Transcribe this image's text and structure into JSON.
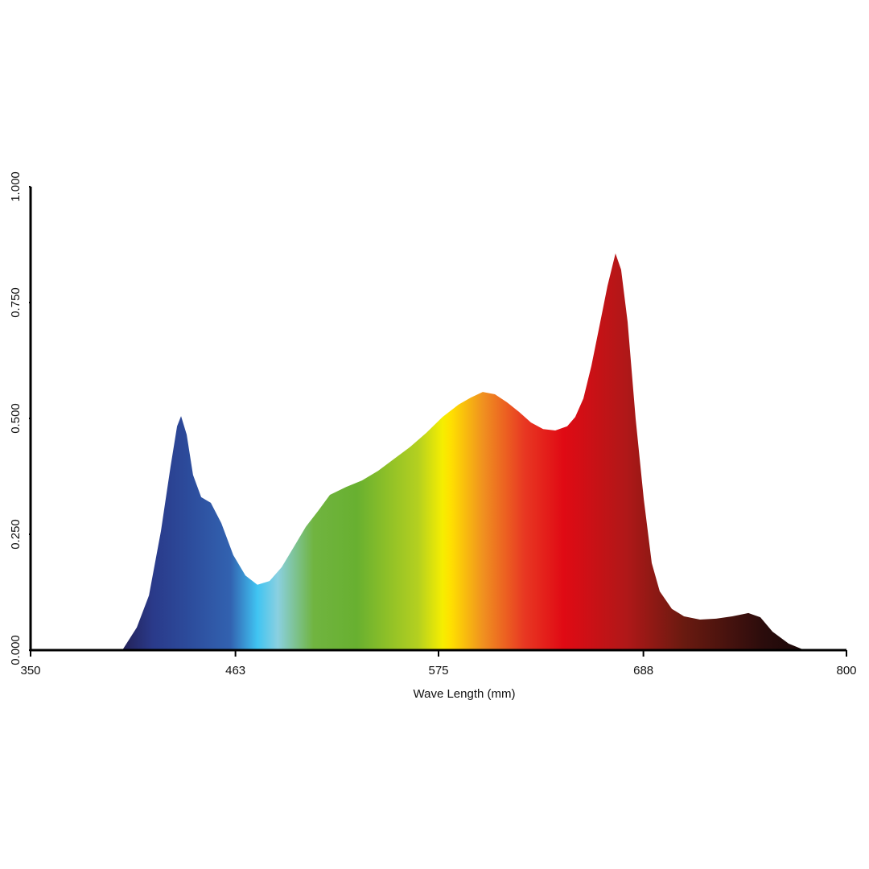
{
  "chart_data": {
    "type": "area",
    "xlabel": "Wave Length (mm)",
    "x": [
      400.6,
      408.6,
      415.3,
      421.9,
      427.2,
      430.8,
      433.0,
      436.1,
      439.6,
      444.1,
      449.4,
      455.2,
      461.8,
      468.5,
      475.1,
      481.8,
      488.5,
      495.1,
      501.8,
      508.5,
      515.1,
      524.0,
      532.8,
      541.7,
      550.6,
      559.5,
      568.3,
      577.2,
      586.1,
      592.8,
      599.4,
      606.1,
      612.7,
      619.4,
      626.0,
      632.7,
      639.4,
      646.0,
      650.4,
      654.9,
      659.3,
      663.8,
      668.2,
      672.6,
      675.7,
      679.3,
      683.7,
      688.2,
      692.6,
      697.0,
      703.7,
      710.4,
      719.2,
      728.1,
      737.0,
      745.9,
      752.5,
      759.2,
      768.1,
      776.9
    ],
    "values": [
      0,
      0.049,
      0.118,
      0.257,
      0.396,
      0.483,
      0.505,
      0.465,
      0.378,
      0.33,
      0.318,
      0.274,
      0.205,
      0.161,
      0.141,
      0.149,
      0.179,
      0.222,
      0.266,
      0.3,
      0.335,
      0.352,
      0.366,
      0.387,
      0.413,
      0.439,
      0.469,
      0.503,
      0.53,
      0.545,
      0.557,
      0.552,
      0.535,
      0.514,
      0.491,
      0.477,
      0.474,
      0.483,
      0.503,
      0.543,
      0.613,
      0.7,
      0.786,
      0.856,
      0.821,
      0.708,
      0.5,
      0.326,
      0.188,
      0.127,
      0.089,
      0.073,
      0.066,
      0.068,
      0.073,
      0.08,
      0.071,
      0.04,
      0.014,
      0
    ],
    "xlim": [
      350,
      800
    ],
    "xticks": [
      350,
      463,
      575,
      688,
      800
    ],
    "ylim": [
      0,
      1
    ],
    "yticks": [
      {
        "value": 0,
        "label": "0.000"
      },
      {
        "value": 0.25,
        "label": "0.250"
      },
      {
        "value": 0.5,
        "label": "0.500"
      },
      {
        "value": 0.75,
        "label": "0.750"
      },
      {
        "value": 1,
        "label": "1.000"
      }
    ]
  }
}
